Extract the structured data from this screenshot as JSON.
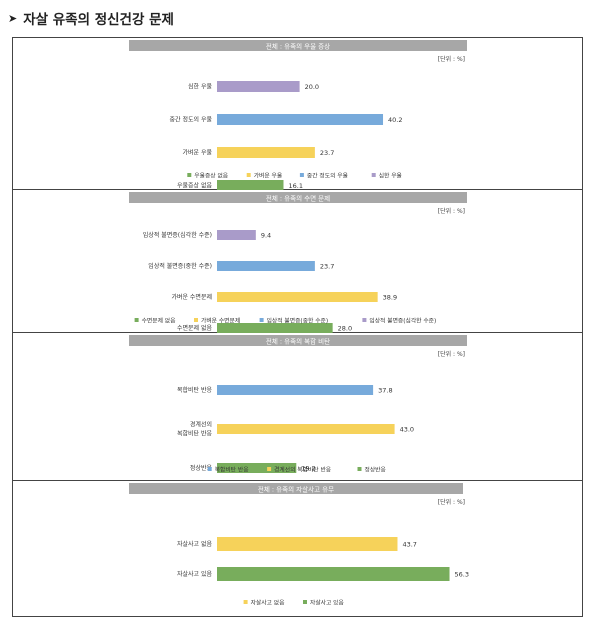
{
  "page_title": "자살 유족의 정신건강 문제",
  "chart_data": [
    {
      "type": "bar",
      "orientation": "horizontal",
      "title": "전체 : 유족의 우울 증상",
      "unit_note": "[단위 : %]",
      "categories": [
        "심한 우울",
        "중간 정도의 우울",
        "가벼운 우울",
        "우울증상 없음"
      ],
      "values": [
        20.0,
        40.2,
        23.7,
        16.1
      ],
      "value_labels": [
        "20.0",
        "40.2",
        "23.7",
        "16.1"
      ],
      "colors": [
        "#a99bc9",
        "#77aadb",
        "#f6d25a",
        "#78ad5c"
      ],
      "legend": [
        {
          "label": "우울증상 없음",
          "color": "#78ad5c"
        },
        {
          "label": "가벼운 우울",
          "color": "#f6d25a"
        },
        {
          "label": "중간 정도의 우울",
          "color": "#77aadb"
        },
        {
          "label": "심한 우울",
          "color": "#a99bc9"
        }
      ],
      "legend_position": "bottom",
      "xlim": [
        0,
        100
      ],
      "grid": false
    },
    {
      "type": "bar",
      "orientation": "horizontal",
      "title": "전체 : 유족의 수면 문제",
      "unit_note": "[단위 : %]",
      "categories": [
        "임상적 불면증(심각한 수준)",
        "임상적 불면증(중한 수준)",
        "가벼운 수면문제",
        "수면문제 없음"
      ],
      "values": [
        9.4,
        23.7,
        38.9,
        28.0
      ],
      "value_labels": [
        "9.4",
        "23.7",
        "38.9",
        "28.0"
      ],
      "colors": [
        "#a99bc9",
        "#77aadb",
        "#f6d25a",
        "#78ad5c"
      ],
      "legend": [
        {
          "label": "수면문제 없음",
          "color": "#78ad5c"
        },
        {
          "label": "가벼운 수면문제",
          "color": "#f6d25a"
        },
        {
          "label": "임상적 불면증(중한 수준)",
          "color": "#77aadb"
        },
        {
          "label": "임상적 불면증(심각한 수준)",
          "color": "#a99bc9"
        }
      ],
      "legend_position": "bottom",
      "xlim": [
        0,
        100
      ],
      "grid": false
    },
    {
      "type": "bar",
      "orientation": "horizontal",
      "title": "전체 : 유족의 복합 비탄",
      "unit_note": "[단위 : %]",
      "categories": [
        [
          "복합비탄 반응"
        ],
        [
          "경계선의",
          "복합비탄 반응"
        ],
        [
          "정상반응"
        ]
      ],
      "values": [
        37.8,
        43.0,
        19.2
      ],
      "value_labels": [
        "37.8",
        "43.0",
        "19.2"
      ],
      "colors": [
        "#77aadb",
        "#f6d25a",
        "#78ad5c"
      ],
      "legend": [
        {
          "label": "복합비탄 반응",
          "color": "#77aadb"
        },
        {
          "label": "경계선의 복합비탄 반응",
          "color": "#f6d25a"
        },
        {
          "label": "정상반응",
          "color": "#78ad5c"
        }
      ],
      "legend_position": "bottom",
      "xlim": [
        0,
        100
      ],
      "grid": false
    },
    {
      "type": "bar",
      "orientation": "horizontal",
      "title": "전체 : 유족의 자살사고 유무",
      "unit_note": "[단위 : %]",
      "categories": [
        "자살사고 없음",
        "자살사고 있음"
      ],
      "values": [
        43.7,
        56.3
      ],
      "value_labels": [
        "43.7",
        "56.3"
      ],
      "colors": [
        "#f6d25a",
        "#78ad5c"
      ],
      "legend": [
        {
          "label": "자살사고 없음",
          "color": "#f6d25a"
        },
        {
          "label": "자살사고 있음",
          "color": "#78ad5c"
        }
      ],
      "legend_position": "bottom",
      "xlim": [
        0,
        100
      ],
      "grid": false
    }
  ]
}
